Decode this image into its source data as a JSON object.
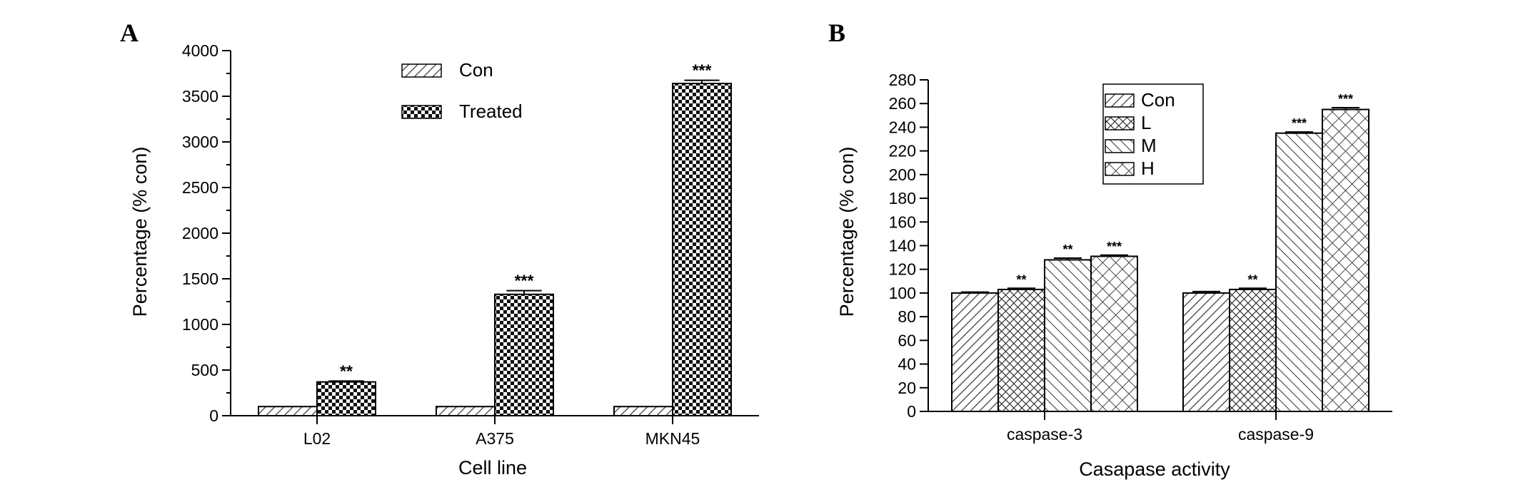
{
  "chart_data": [
    {
      "panel": "A",
      "type": "bar",
      "categories": [
        "L02",
        "A375",
        "MKN45"
      ],
      "series": [
        {
          "name": "Con",
          "values": [
            100,
            100,
            100
          ],
          "errors": [
            0,
            0,
            0
          ],
          "significance": [
            "",
            "",
            ""
          ],
          "pattern": "diagonal-hatch"
        },
        {
          "name": "Treated",
          "values": [
            370,
            1330,
            3640
          ],
          "errors": [
            10,
            40,
            35
          ],
          "significance": [
            "**",
            "***",
            "***"
          ],
          "pattern": "checkerboard"
        }
      ],
      "xlabel": "Cell line",
      "ylabel": "Percentage (% con)",
      "ylim": [
        0,
        4000
      ],
      "yticks": [
        0,
        500,
        1000,
        1500,
        2000,
        2500,
        3000,
        3500,
        4000
      ],
      "legend_position": "top-center",
      "legend_border": false,
      "grid": false
    },
    {
      "panel": "B",
      "type": "bar",
      "categories": [
        "caspase-3",
        "caspase-9"
      ],
      "series": [
        {
          "name": "Con",
          "values": [
            100,
            100
          ],
          "errors": [
            0.8,
            1.2
          ],
          "significance": [
            "",
            ""
          ],
          "pattern": "diagonal-hatch"
        },
        {
          "name": "L",
          "values": [
            103,
            103
          ],
          "errors": [
            1,
            1
          ],
          "significance": [
            "**",
            "**"
          ],
          "pattern": "cross-hatch-dense"
        },
        {
          "name": "M",
          "values": [
            128,
            235
          ],
          "errors": [
            1.5,
            1
          ],
          "significance": [
            "**",
            "***"
          ],
          "pattern": "back-diagonal"
        },
        {
          "name": "H",
          "values": [
            131,
            255
          ],
          "errors": [
            1,
            1.5
          ],
          "significance": [
            "***",
            "***"
          ],
          "pattern": "cross-hatch"
        }
      ],
      "xlabel": "Casapase activity",
      "ylabel": "Percentage (% con)",
      "ylim": [
        0,
        280
      ],
      "yticks": [
        0,
        20,
        40,
        60,
        80,
        100,
        120,
        140,
        160,
        180,
        200,
        220,
        240,
        260,
        280
      ],
      "legend_position": "top-left",
      "legend_border": true,
      "grid": false
    }
  ],
  "colors": {
    "ink": "#000000",
    "bar_fill": "#ffffff",
    "hatch": "#333333"
  }
}
